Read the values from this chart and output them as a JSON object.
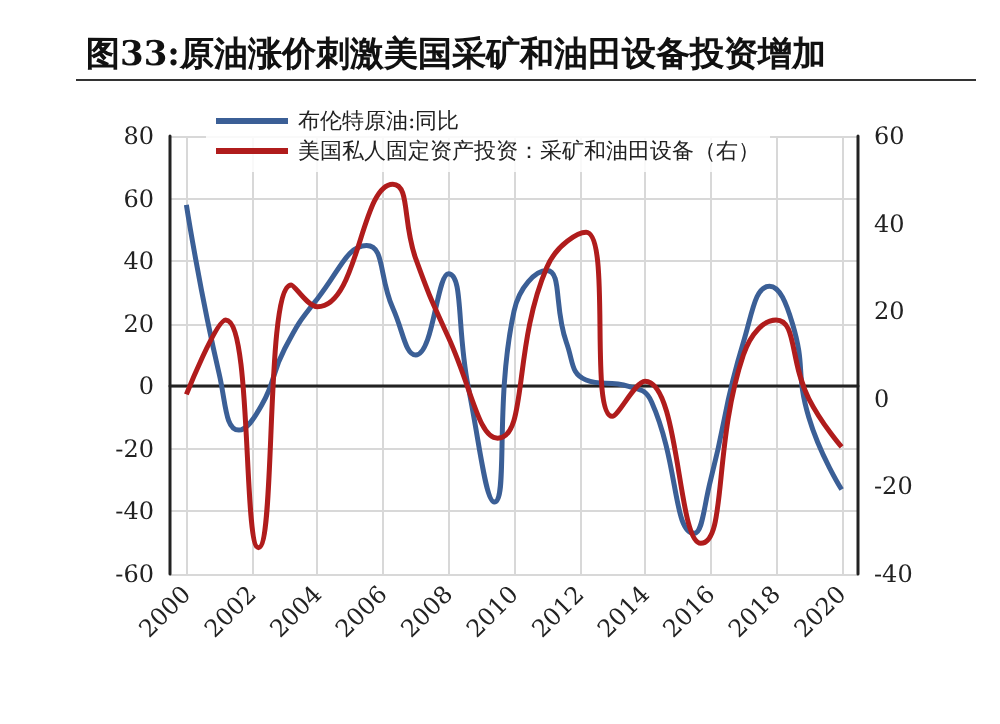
{
  "chart_data": {
    "type": "line",
    "title": "图33:原油涨价刺激美国采矿和油田设备投资增加",
    "xlim": [
      1999.5,
      2020.5
    ],
    "xticks": [
      2000,
      2002,
      2004,
      2006,
      2008,
      2010,
      2012,
      2014,
      2016,
      2018,
      2020
    ],
    "ylim": [
      -60,
      80
    ],
    "yticks": [
      -60,
      -40,
      -20,
      0,
      20,
      40,
      60,
      80
    ],
    "y2lim": [
      -40,
      60
    ],
    "y2ticks": [
      -40,
      -20,
      0,
      20,
      40,
      60
    ],
    "grid": true,
    "legend": "top left",
    "marker": "none",
    "line_style": "solid",
    "series": [
      {
        "name": "布伦特原油:同比",
        "color": "#3b5f96",
        "x": [
          2000,
          2001,
          2001.6,
          2002.3,
          2003,
          2004,
          2005.5,
          2006.3,
          2007,
          2008,
          2008.6,
          2009.4,
          2010,
          2011,
          2011.6,
          2012.2,
          2013.5,
          2014.2,
          2015.5,
          2016,
          2017,
          2017.8,
          2018.5,
          2019,
          2020
        ],
        "values": [
          58,
          4,
          -14,
          -6,
          12,
          28,
          45,
          25,
          10,
          36,
          0,
          -37,
          24,
          37,
          14,
          2,
          0,
          -5,
          -47,
          -30,
          14,
          32,
          20,
          -10,
          -33
        ]
      },
      {
        "name": "美国私人固定资产投资：采矿和油田设备（右）",
        "color": "#b01c1c",
        "axis": "y2",
        "x": [
          2000,
          2001.2,
          2002.2,
          2003.2,
          2004,
          2006.3,
          2007,
          2008,
          2009.5,
          2011,
          2012.2,
          2013,
          2014,
          2015.7,
          2017,
          2018,
          2019,
          2020
        ],
        "values": [
          1,
          18,
          -34,
          26,
          21,
          49,
          32,
          14,
          -9,
          30,
          38,
          -4,
          4,
          -33,
          10,
          18,
          0,
          -11
        ]
      }
    ]
  }
}
